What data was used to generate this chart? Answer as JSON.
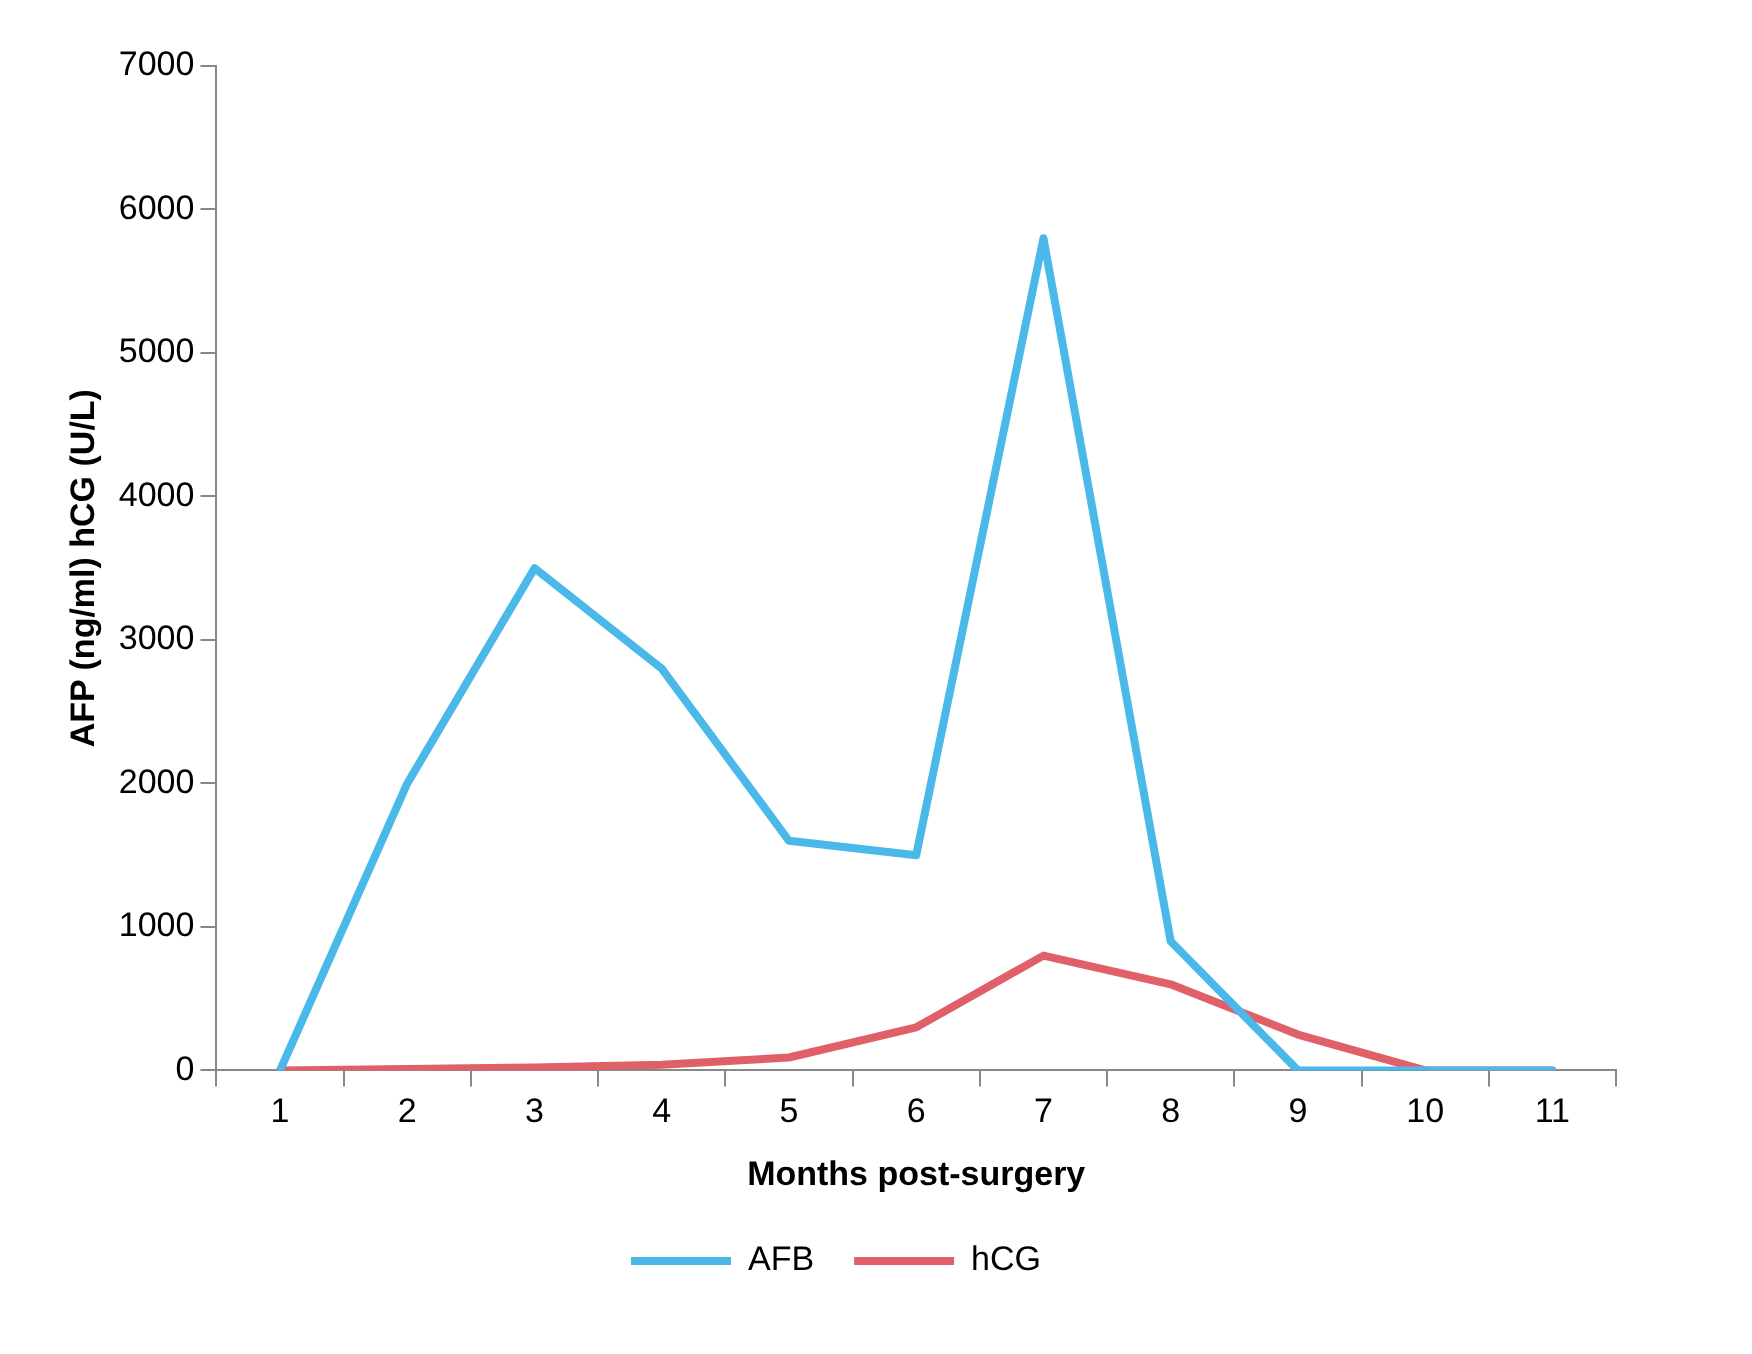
{
  "chart_data": {
    "type": "line",
    "xlabel": "Months post-surgery",
    "ylabel": "AFP (ng/ml) hCG (U/L)",
    "categories": [
      "1",
      "2",
      "3",
      "4",
      "5",
      "6",
      "7",
      "8",
      "9",
      "10",
      "11"
    ],
    "series": [
      {
        "name": "AFB",
        "color": "#4ab8e8",
        "values": [
          0,
          2000,
          3500,
          2800,
          1600,
          1500,
          5800,
          900,
          0,
          0,
          0
        ]
      },
      {
        "name": "hCG",
        "color": "#e0606a",
        "values": [
          0,
          10,
          20,
          40,
          90,
          300,
          800,
          600,
          250,
          0,
          0
        ]
      }
    ],
    "ylim": [
      0,
      7000
    ],
    "yticks": [
      0,
      1000,
      2000,
      3000,
      4000,
      5000,
      6000,
      7000
    ],
    "grid": false,
    "legend": "bottom",
    "marker": "none",
    "line_style": "solid"
  }
}
